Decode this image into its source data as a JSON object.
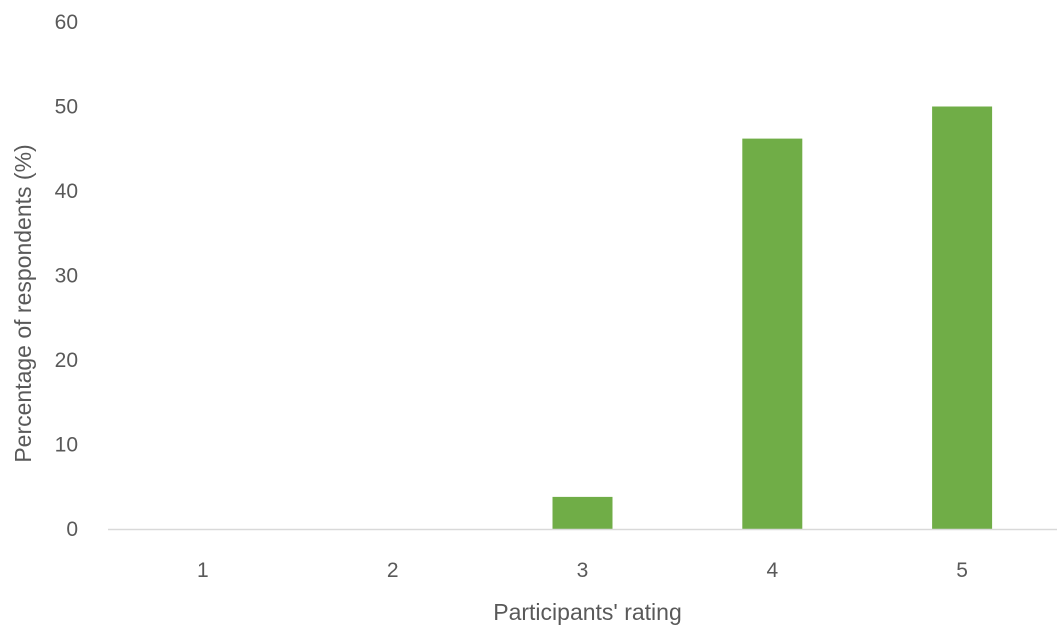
{
  "chart_data": {
    "type": "bar",
    "categories": [
      "1",
      "2",
      "3",
      "4",
      "5"
    ],
    "values": [
      0,
      0,
      3.8,
      46.2,
      50
    ],
    "title": "",
    "xlabel": "Participants' rating",
    "ylabel": "Percentage of respondents (%)",
    "ylim": [
      0,
      60
    ],
    "yticks": [
      "0",
      "10",
      "20",
      "30",
      "40",
      "50",
      "60"
    ],
    "grid": false,
    "legend": "none",
    "bar_color": "#70AD47",
    "axis_color": "#D9D9D9",
    "text_color": "#595959"
  }
}
